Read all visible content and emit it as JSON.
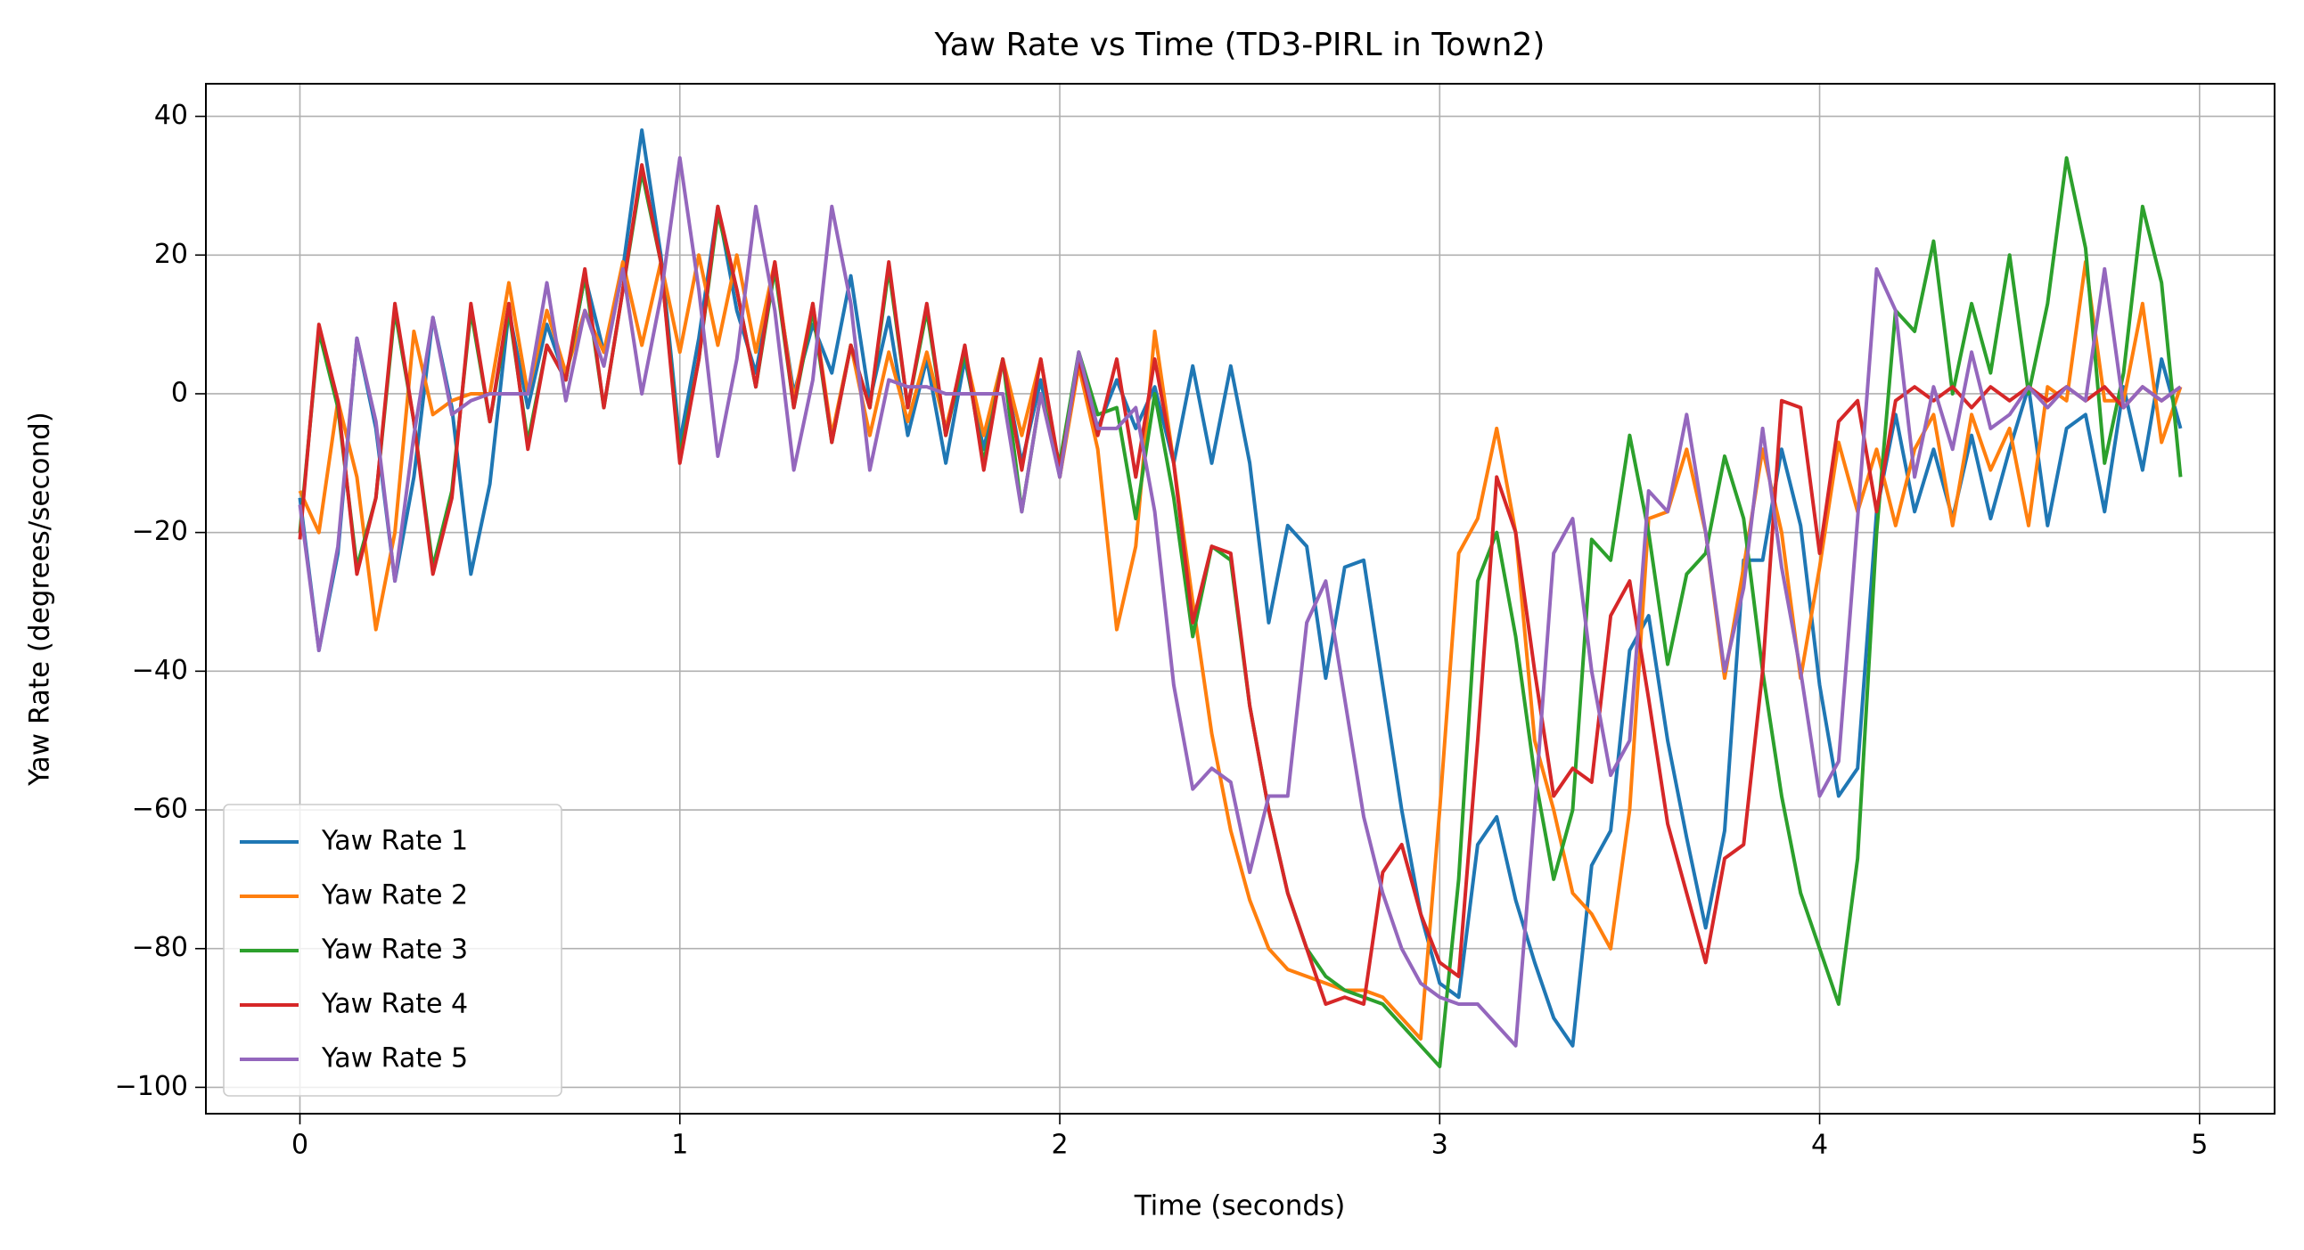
{
  "chart_data": {
    "type": "line",
    "title": "Yaw Rate vs Time (TD3-PIRL in Town2)",
    "x_label": "Time (seconds)",
    "y_label": "Yaw Rate (degrees/second)",
    "x": [
      0,
      0.05,
      0.1,
      0.15,
      0.2,
      0.25,
      0.3,
      0.35,
      0.4,
      0.45,
      0.5,
      0.55,
      0.6,
      0.65,
      0.7,
      0.75,
      0.8,
      0.85,
      0.9,
      0.95,
      1,
      1.05,
      1.1,
      1.15,
      1.2,
      1.25,
      1.3,
      1.35,
      1.4,
      1.45,
      1.5,
      1.55,
      1.6,
      1.65,
      1.7,
      1.75,
      1.8,
      1.85,
      1.9,
      1.95,
      2,
      2.05,
      2.1,
      2.15,
      2.2,
      2.25,
      2.3,
      2.35,
      2.4,
      2.45,
      2.5,
      2.55,
      2.6,
      2.65,
      2.7,
      2.75,
      2.8,
      2.85,
      2.9,
      2.95,
      3,
      3.05,
      3.1,
      3.15,
      3.2,
      3.25,
      3.3,
      3.35,
      3.4,
      3.45,
      3.5,
      3.55,
      3.6,
      3.65,
      3.7,
      3.75,
      3.8,
      3.85,
      3.9,
      3.95,
      4,
      4.05,
      4.1,
      4.15,
      4.2,
      4.25,
      4.3,
      4.35,
      4.4,
      4.45,
      4.5,
      4.55,
      4.6,
      4.65,
      4.7,
      4.75,
      4.8,
      4.85,
      4.9,
      4.95
    ],
    "series": [
      {
        "name": "Yaw Rate 1",
        "color": "#1f77b4",
        "values": [
          -15,
          -37,
          -23,
          8,
          -5,
          -27,
          -12,
          11,
          -2,
          -26,
          -13,
          12,
          -2,
          10,
          2,
          17,
          6,
          18,
          38,
          20,
          -7,
          8,
          27,
          12,
          3,
          18,
          0,
          10,
          3,
          17,
          -1,
          11,
          -6,
          5,
          -10,
          5,
          -8,
          5,
          -10,
          2,
          -12,
          5,
          -5,
          2,
          -5,
          1,
          -10,
          4,
          -10,
          4,
          -10,
          -33,
          -19,
          -22,
          -41,
          -25,
          -24,
          -42,
          -60,
          -75,
          -85,
          -87,
          -65,
          -61,
          -73,
          -82,
          -90,
          -94,
          -68,
          -63,
          -37,
          -32,
          -50,
          -64,
          -77,
          -63,
          -24,
          -24,
          -8,
          -19,
          -42,
          -58,
          -54,
          -17,
          -3,
          -17,
          -8,
          -18,
          -6,
          -18,
          -8,
          1,
          -19,
          -5,
          -3,
          -17,
          1,
          -11,
          5,
          -5
        ]
      },
      {
        "name": "Yaw Rate 2",
        "color": "#ff7f0e",
        "values": [
          -14,
          -20,
          -1,
          -12,
          -34,
          -20,
          9,
          -3,
          -1,
          0,
          0,
          16,
          0,
          12,
          3,
          12,
          6,
          19,
          7,
          19,
          6,
          20,
          7,
          20,
          6,
          19,
          -1,
          13,
          -6,
          7,
          -6,
          6,
          -4,
          6,
          -5,
          6,
          -6,
          5,
          -6,
          5,
          -12,
          4,
          -8,
          -34,
          -22,
          9,
          -10,
          -30,
          -49,
          -63,
          -73,
          -80,
          -83,
          -84,
          -85,
          -86,
          -86,
          -87,
          -90,
          -93,
          -60,
          -23,
          -18,
          -5,
          -20,
          -50,
          -60,
          -72,
          -75,
          -80,
          -60,
          -18,
          -17,
          -8,
          -20,
          -41,
          -25,
          -8,
          -20,
          -41,
          -25,
          -7,
          -17,
          -8,
          -19,
          -8,
          -3,
          -19,
          -3,
          -11,
          -5,
          -19,
          1,
          -1,
          19,
          -1,
          -1,
          13,
          -7,
          1
        ]
      },
      {
        "name": "Yaw Rate 3",
        "color": "#2ca02c",
        "values": [
          -20,
          9,
          -2,
          -25,
          -15,
          12,
          -4,
          -25,
          -14,
          12,
          -4,
          12,
          -7,
          7,
          2,
          17,
          -2,
          15,
          32,
          19,
          -9,
          5,
          26,
          15,
          1,
          18,
          -2,
          12,
          -7,
          7,
          -2,
          18,
          -2,
          12,
          -6,
          6,
          -10,
          5,
          -17,
          0,
          -10,
          6,
          -3,
          -2,
          -18,
          0,
          -15,
          -35,
          -22,
          -24,
          -45,
          -60,
          -72,
          -80,
          -84,
          -86,
          -87,
          -88,
          -91,
          -94,
          -97,
          -70,
          -27,
          -20,
          -35,
          -55,
          -70,
          -60,
          -21,
          -24,
          -6,
          -20,
          -39,
          -26,
          -23,
          -9,
          -18,
          -40,
          -58,
          -72,
          -80,
          -88,
          -67,
          -20,
          12,
          9,
          22,
          0,
          13,
          3,
          20,
          0,
          13,
          34,
          21,
          -10,
          3,
          27,
          16,
          -12
        ]
      },
      {
        "name": "Yaw Rate 4",
        "color": "#d62728",
        "values": [
          -21,
          10,
          -1,
          -26,
          -15,
          13,
          -4,
          -26,
          -15,
          13,
          -4,
          13,
          -8,
          7,
          2,
          18,
          -2,
          15,
          33,
          19,
          -10,
          5,
          27,
          15,
          1,
          19,
          -2,
          13,
          -7,
          7,
          -2,
          19,
          -2,
          13,
          -6,
          7,
          -11,
          5,
          -11,
          5,
          -11,
          5,
          -6,
          5,
          -12,
          5,
          -10,
          -33,
          -22,
          -23,
          -45,
          -60,
          -72,
          -80,
          -88,
          -87,
          -88,
          -69,
          -65,
          -75,
          -82,
          -84,
          -50,
          -12,
          -20,
          -40,
          -58,
          -54,
          -56,
          -32,
          -27,
          -44,
          -62,
          -72,
          -82,
          -67,
          -65,
          -40,
          -1,
          -2,
          -23,
          -4,
          -1,
          -17,
          -1,
          1,
          -1,
          1,
          -2,
          1,
          -1,
          1,
          -1,
          1,
          -1,
          1,
          -2,
          1,
          -1,
          1
        ]
      },
      {
        "name": "Yaw Rate 5",
        "color": "#9467bd",
        "values": [
          -16,
          -37,
          -22,
          8,
          -4,
          -27,
          -6,
          11,
          -3,
          -1,
          0,
          0,
          0,
          16,
          -1,
          12,
          4,
          18,
          0,
          14,
          34,
          15,
          -9,
          5,
          27,
          12,
          -11,
          2,
          27,
          13,
          -11,
          2,
          1,
          1,
          0,
          0,
          0,
          0,
          -17,
          0,
          -12,
          6,
          -5,
          -5,
          -2,
          -17,
          -42,
          -57,
          -54,
          -56,
          -69,
          -58,
          -58,
          -33,
          -27,
          -44,
          -61,
          -72,
          -80,
          -85,
          -87,
          -88,
          -88,
          -91,
          -94,
          -60,
          -23,
          -18,
          -40,
          -55,
          -50,
          -14,
          -17,
          -3,
          -20,
          -40,
          -28,
          -5,
          -25,
          -40,
          -58,
          -53,
          -18,
          18,
          12,
          -12,
          1,
          -8,
          6,
          -5,
          -3,
          1,
          -2,
          1,
          -1,
          18,
          -2,
          1,
          -1,
          1
        ]
      }
    ],
    "xlim": [
      -0.2475,
      5.1975
    ],
    "ylim": [
      -103.8,
      44.7
    ],
    "xticks": [
      0,
      1,
      2,
      3,
      4,
      5
    ],
    "yticks": [
      {
        "value": -100,
        "label": "−100"
      },
      {
        "value": -80,
        "label": "−80"
      },
      {
        "value": -60,
        "label": "−60"
      },
      {
        "value": -40,
        "label": "−40"
      },
      {
        "value": -20,
        "label": "−20"
      },
      0,
      20,
      40
    ],
    "grid": true,
    "legend": "lower left"
  }
}
